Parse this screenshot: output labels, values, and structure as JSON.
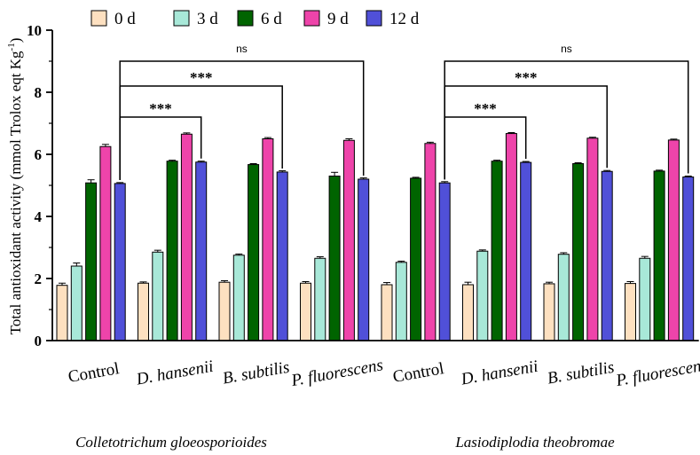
{
  "chart_data": {
    "type": "bar",
    "ylabel_main": "Total antioxidant activity (mmol Trolox eqt Kg",
    "ylabel_sup": "-1",
    "ylabel_end": ")",
    "ylim": [
      0,
      10
    ],
    "yticks": [
      "0",
      "2",
      "4",
      "6",
      "8",
      "10"
    ],
    "categories": [
      "Control",
      "D. hansenii",
      "B. subtilis",
      "P. fluorescens",
      "Control",
      "D. hansenii",
      "B. subtilis",
      "P. fluorescens"
    ],
    "italic_categories": [
      false,
      true,
      true,
      true,
      false,
      true,
      true,
      true
    ],
    "groups": [
      {
        "label": "Colletotrichum gloeosporioides"
      },
      {
        "label": "Lasiodiplodia theobromae"
      }
    ],
    "series": [
      {
        "name": "0 d",
        "color": "#fde0c0",
        "values": [
          1.78,
          1.85,
          1.88,
          1.85,
          1.8,
          1.8,
          1.83,
          1.84
        ],
        "errors": [
          0.07,
          0.04,
          0.05,
          0.05,
          0.07,
          0.08,
          0.05,
          0.06
        ]
      },
      {
        "name": "3 d",
        "color": "#a8e8d8",
        "values": [
          2.4,
          2.85,
          2.75,
          2.65,
          2.52,
          2.88,
          2.78,
          2.65
        ],
        "errors": [
          0.1,
          0.06,
          0.04,
          0.05,
          0.04,
          0.04,
          0.05,
          0.06
        ]
      },
      {
        "name": "6 d",
        "color": "#006400",
        "values": [
          5.08,
          5.78,
          5.67,
          5.3,
          5.23,
          5.78,
          5.7,
          5.46
        ],
        "errors": [
          0.1,
          0.03,
          0.03,
          0.12,
          0.03,
          0.03,
          0.03,
          0.03
        ]
      },
      {
        "name": "9 d",
        "color": "#ee44aa",
        "values": [
          6.25,
          6.65,
          6.5,
          6.45,
          6.35,
          6.67,
          6.52,
          6.46
        ],
        "errors": [
          0.07,
          0.04,
          0.04,
          0.05,
          0.04,
          0.03,
          0.03,
          0.03
        ]
      },
      {
        "name": "12 d",
        "color": "#5050d8",
        "values": [
          5.06,
          5.75,
          5.43,
          5.2,
          5.08,
          5.74,
          5.45,
          5.27
        ],
        "errors": [
          0.03,
          0.03,
          0.04,
          0.04,
          0.04,
          0.03,
          0.03,
          0.03
        ]
      }
    ],
    "comparisons": [
      {
        "from_category": 0,
        "to_category": 1,
        "y": 7.2,
        "label": "***"
      },
      {
        "from_category": 0,
        "to_category": 2,
        "y": 8.2,
        "label": "***"
      },
      {
        "from_category": 0,
        "to_category": 3,
        "y": 9.0,
        "label": "ns"
      },
      {
        "from_category": 4,
        "to_category": 5,
        "y": 7.2,
        "label": "***"
      },
      {
        "from_category": 4,
        "to_category": 6,
        "y": 8.2,
        "label": "***"
      },
      {
        "from_category": 4,
        "to_category": 7,
        "y": 9.0,
        "label": "ns"
      }
    ],
    "legend_position": "top"
  }
}
